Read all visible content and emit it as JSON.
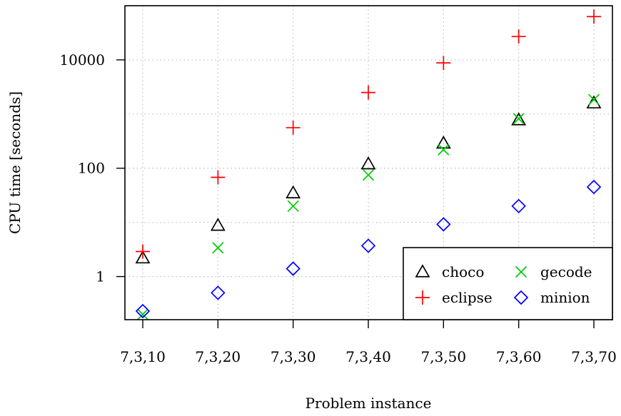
{
  "chart_data": {
    "type": "scatter",
    "title": "",
    "xlabel": "Problem instance",
    "ylabel": "CPU time [seconds]",
    "y_scale": "log",
    "ylim": [
      0.16,
      100000
    ],
    "grid": true,
    "legend_position": "bottom-right",
    "categories": [
      "7,3,10",
      "7,3,20",
      "7,3,30",
      "7,3,40",
      "7,3,50",
      "7,3,60",
      "7,3,70"
    ],
    "y_ticks": [
      {
        "value": 1,
        "label": "1"
      },
      {
        "value": 100,
        "label": "100"
      },
      {
        "value": 10000,
        "label": "10000"
      }
    ],
    "series": [
      {
        "name": "choco",
        "marker": "triangle",
        "color": "#000000",
        "values": [
          2.2,
          8.8,
          35,
          120,
          290,
          780,
          1600
        ]
      },
      {
        "name": "eclipse",
        "marker": "plus",
        "color": "#ff0000",
        "values": [
          2.9,
          68,
          560,
          2500,
          8800,
          27000,
          63000
        ]
      },
      {
        "name": "gecode",
        "marker": "cross",
        "color": "#00cc00",
        "values": [
          0.2,
          3.4,
          20,
          75,
          220,
          820,
          1850
        ]
      },
      {
        "name": "minion",
        "marker": "diamond",
        "color": "#0000ff",
        "values": [
          0.23,
          0.5,
          1.4,
          3.7,
          9.2,
          20,
          45
        ]
      }
    ]
  }
}
